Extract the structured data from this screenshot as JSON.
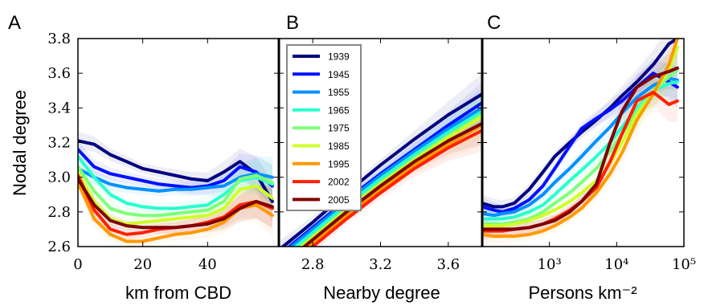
{
  "figure": {
    "ylabel": "Nodal degree",
    "ylim": [
      2.6,
      3.8
    ],
    "y_ticks": [
      "2.6",
      "2.8",
      "3.0",
      "3.2",
      "3.4",
      "3.6",
      "3.8"
    ],
    "y_tick_values": [
      2.6,
      2.8,
      3.0,
      3.2,
      3.4,
      3.6,
      3.8
    ]
  },
  "legend": {
    "placement": "upper-left of panel B",
    "entries": [
      {
        "name": "1939",
        "color": "#00007f"
      },
      {
        "name": "1945",
        "color": "#0010ff"
      },
      {
        "name": "1955",
        "color": "#0090ff"
      },
      {
        "name": "1965",
        "color": "#29ffce"
      },
      {
        "name": "1975",
        "color": "#7dff7a"
      },
      {
        "name": "1985",
        "color": "#ceff29"
      },
      {
        "name": "1995",
        "color": "#ff9900"
      },
      {
        "name": "2002",
        "color": "#ff2000"
      },
      {
        "name": "2005",
        "color": "#7f0000"
      }
    ]
  },
  "chart_data": [
    {
      "panel": "A",
      "type": "line",
      "xlabel": "km from CBD",
      "ylabel": "Nodal degree",
      "xlim": [
        0,
        62
      ],
      "ylim": [
        2.6,
        3.8
      ],
      "x_ticks": [
        "0",
        "20",
        "40"
      ],
      "x_tick_values": [
        0,
        20,
        40
      ],
      "bands": true,
      "series": [
        {
          "name": "1939",
          "x": [
            0,
            5,
            10,
            15,
            20,
            25,
            30,
            35,
            40,
            45,
            50,
            55,
            60
          ],
          "y": [
            3.21,
            3.19,
            3.13,
            3.09,
            3.05,
            3.03,
            3.01,
            2.99,
            2.98,
            3.03,
            3.09,
            3.02,
            2.86
          ]
        },
        {
          "name": "1945",
          "x": [
            0,
            5,
            10,
            15,
            20,
            25,
            30,
            35,
            40,
            45,
            50,
            55,
            60
          ],
          "y": [
            3.16,
            3.06,
            3.02,
            3.0,
            2.98,
            2.96,
            2.95,
            2.94,
            2.95,
            2.98,
            3.06,
            3.03,
            2.95
          ]
        },
        {
          "name": "1955",
          "x": [
            0,
            5,
            10,
            15,
            20,
            25,
            30,
            35,
            40,
            45,
            50,
            55,
            60
          ],
          "y": [
            3.05,
            3.0,
            2.96,
            2.94,
            2.93,
            2.92,
            2.93,
            2.93,
            2.94,
            2.95,
            3.0,
            3.02,
            3.0
          ]
        },
        {
          "name": "1965",
          "x": [
            0,
            5,
            10,
            15,
            20,
            25,
            30,
            35,
            40,
            45,
            50,
            55,
            60
          ],
          "y": [
            3.12,
            3.0,
            2.9,
            2.85,
            2.83,
            2.82,
            2.82,
            2.83,
            2.84,
            2.9,
            2.98,
            3.0,
            2.96
          ]
        },
        {
          "name": "1975",
          "x": [
            0,
            5,
            10,
            15,
            20,
            25,
            30,
            35,
            40,
            45,
            50,
            55,
            60
          ],
          "y": [
            3.06,
            2.92,
            2.82,
            2.79,
            2.78,
            2.78,
            2.79,
            2.8,
            2.81,
            2.86,
            2.99,
            3.01,
            2.97
          ]
        },
        {
          "name": "1985",
          "x": [
            0,
            5,
            10,
            15,
            20,
            25,
            30,
            35,
            40,
            45,
            50,
            55,
            60
          ],
          "y": [
            3.03,
            2.86,
            2.76,
            2.73,
            2.74,
            2.75,
            2.76,
            2.77,
            2.78,
            2.82,
            2.93,
            2.95,
            2.88
          ]
        },
        {
          "name": "1995",
          "x": [
            0,
            5,
            10,
            15,
            20,
            25,
            30,
            35,
            40,
            45,
            50,
            55,
            60
          ],
          "y": [
            2.97,
            2.76,
            2.67,
            2.63,
            2.63,
            2.65,
            2.67,
            2.68,
            2.7,
            2.74,
            2.82,
            2.84,
            2.78
          ]
        },
        {
          "name": "2002",
          "x": [
            0,
            5,
            10,
            15,
            20,
            25,
            30,
            35,
            40,
            45,
            50,
            55,
            60
          ],
          "y": [
            3.01,
            2.81,
            2.7,
            2.67,
            2.68,
            2.7,
            2.71,
            2.72,
            2.74,
            2.77,
            2.84,
            2.86,
            2.82
          ]
        },
        {
          "name": "2005",
          "x": [
            0,
            5,
            10,
            15,
            20,
            25,
            30,
            35,
            40,
            45,
            50,
            55,
            60
          ],
          "y": [
            2.99,
            2.84,
            2.75,
            2.72,
            2.71,
            2.71,
            2.71,
            2.72,
            2.73,
            2.76,
            2.82,
            2.86,
            2.83
          ]
        }
      ]
    },
    {
      "panel": "B",
      "type": "line",
      "xlabel": "Nearby degree",
      "ylabel": "",
      "xlim": [
        2.6,
        3.8
      ],
      "ylim": [
        2.6,
        3.8
      ],
      "x_ticks": [
        "2.8",
        "3.2",
        "3.6"
      ],
      "x_tick_values": [
        2.8,
        3.2,
        3.6
      ],
      "bands": true,
      "series": [
        {
          "name": "1939",
          "x": [
            2.6,
            2.8,
            3.0,
            3.2,
            3.4,
            3.6,
            3.8
          ],
          "y": [
            2.58,
            2.74,
            2.91,
            3.07,
            3.22,
            3.36,
            3.48
          ]
        },
        {
          "name": "1945",
          "x": [
            2.6,
            2.8,
            3.0,
            3.2,
            3.4,
            3.6,
            3.8
          ],
          "y": [
            2.55,
            2.71,
            2.87,
            3.02,
            3.16,
            3.3,
            3.43
          ]
        },
        {
          "name": "1955",
          "x": [
            2.6,
            2.8,
            3.0,
            3.2,
            3.4,
            3.6,
            3.8
          ],
          "y": [
            2.54,
            2.7,
            2.86,
            3.01,
            3.15,
            3.28,
            3.4
          ]
        },
        {
          "name": "1965",
          "x": [
            2.6,
            2.8,
            3.0,
            3.2,
            3.4,
            3.6,
            3.8
          ],
          "y": [
            2.52,
            2.68,
            2.84,
            2.99,
            3.13,
            3.26,
            3.38
          ]
        },
        {
          "name": "1975",
          "x": [
            2.6,
            2.8,
            3.0,
            3.2,
            3.4,
            3.6,
            3.8
          ],
          "y": [
            2.5,
            2.66,
            2.82,
            2.97,
            3.11,
            3.24,
            3.36
          ]
        },
        {
          "name": "1985",
          "x": [
            2.6,
            2.8,
            3.0,
            3.2,
            3.4,
            3.6,
            3.8
          ],
          "y": [
            2.49,
            2.65,
            2.81,
            2.96,
            3.1,
            3.23,
            3.35
          ]
        },
        {
          "name": "1995",
          "x": [
            2.6,
            2.8,
            3.0,
            3.2,
            3.4,
            3.6,
            3.8
          ],
          "y": [
            2.46,
            2.62,
            2.78,
            2.93,
            3.07,
            3.19,
            3.3
          ]
        },
        {
          "name": "2002",
          "x": [
            2.6,
            2.8,
            3.0,
            3.2,
            3.4,
            3.6,
            3.8
          ],
          "y": [
            2.44,
            2.6,
            2.76,
            2.91,
            3.05,
            3.17,
            3.27
          ]
        },
        {
          "name": "2005",
          "x": [
            2.6,
            2.8,
            3.0,
            3.2,
            3.4,
            3.6,
            3.8
          ],
          "y": [
            2.48,
            2.64,
            2.8,
            2.95,
            3.09,
            3.21,
            3.31
          ]
        }
      ]
    },
    {
      "panel": "C",
      "type": "line",
      "xlabel": "Persons km⁻²",
      "ylabel": "",
      "x_scale": "log",
      "xlim": [
        100,
        100000
      ],
      "ylim": [
        2.6,
        3.8
      ],
      "x_ticks": [
        "10³",
        "10⁴",
        "10⁵"
      ],
      "x_tick_values": [
        1000,
        10000,
        100000
      ],
      "bands": true,
      "series": [
        {
          "name": "1939",
          "x": [
            100,
            150,
            200,
            300,
            500,
            800,
            1200,
            2000,
            3000,
            5000,
            8000,
            12000,
            20000,
            35000,
            60000,
            80000
          ],
          "y": [
            2.85,
            2.83,
            2.83,
            2.85,
            2.93,
            3.03,
            3.12,
            3.2,
            3.26,
            3.33,
            3.4,
            3.47,
            3.55,
            3.65,
            3.77,
            3.8
          ]
        },
        {
          "name": "1945",
          "x": [
            100,
            150,
            200,
            300,
            500,
            800,
            1200,
            2000,
            3000,
            5000,
            8000,
            12000,
            20000,
            35000,
            60000,
            80000
          ],
          "y": [
            2.83,
            2.81,
            2.8,
            2.82,
            2.87,
            2.95,
            3.05,
            3.18,
            3.28,
            3.34,
            3.39,
            3.44,
            3.52,
            3.6,
            3.55,
            3.52
          ]
        },
        {
          "name": "1955",
          "x": [
            100,
            150,
            200,
            300,
            500,
            800,
            1200,
            2000,
            3000,
            5000,
            8000,
            12000,
            20000,
            35000,
            60000,
            80000
          ],
          "y": [
            2.79,
            2.78,
            2.79,
            2.8,
            2.84,
            2.9,
            2.97,
            3.05,
            3.12,
            3.21,
            3.29,
            3.37,
            3.46,
            3.53,
            3.57,
            3.56
          ]
        },
        {
          "name": "1965",
          "x": [
            100,
            150,
            200,
            300,
            500,
            800,
            1200,
            2000,
            3000,
            5000,
            8000,
            12000,
            20000,
            35000,
            60000,
            80000
          ],
          "y": [
            2.76,
            2.76,
            2.76,
            2.77,
            2.8,
            2.84,
            2.9,
            2.98,
            3.04,
            3.12,
            3.2,
            3.29,
            3.4,
            3.5,
            3.54,
            3.55
          ]
        },
        {
          "name": "1975",
          "x": [
            100,
            150,
            200,
            300,
            500,
            800,
            1200,
            2000,
            3000,
            5000,
            8000,
            12000,
            20000,
            35000,
            60000,
            80000
          ],
          "y": [
            2.73,
            2.73,
            2.73,
            2.74,
            2.76,
            2.8,
            2.85,
            2.91,
            2.97,
            3.05,
            3.15,
            3.25,
            3.38,
            3.5,
            3.58,
            3.62
          ]
        },
        {
          "name": "1985",
          "x": [
            100,
            150,
            200,
            300,
            500,
            800,
            1200,
            2000,
            3000,
            5000,
            8000,
            12000,
            20000,
            35000,
            60000,
            80000
          ],
          "y": [
            2.72,
            2.72,
            2.72,
            2.73,
            2.75,
            2.78,
            2.81,
            2.86,
            2.91,
            2.98,
            3.08,
            3.2,
            3.36,
            3.48,
            3.62,
            3.75
          ]
        },
        {
          "name": "1995",
          "x": [
            100,
            150,
            200,
            300,
            500,
            800,
            1200,
            2000,
            3000,
            5000,
            8000,
            12000,
            20000,
            35000,
            60000,
            80000
          ],
          "y": [
            2.67,
            2.66,
            2.66,
            2.66,
            2.67,
            2.69,
            2.72,
            2.77,
            2.82,
            2.91,
            3.02,
            3.14,
            3.33,
            3.48,
            3.65,
            3.8
          ]
        },
        {
          "name": "2002",
          "x": [
            100,
            150,
            200,
            300,
            500,
            800,
            1200,
            2000,
            3000,
            5000,
            8000,
            12000,
            20000,
            35000,
            60000,
            80000
          ],
          "y": [
            2.69,
            2.69,
            2.69,
            2.7,
            2.71,
            2.73,
            2.76,
            2.81,
            2.86,
            2.94,
            3.09,
            3.25,
            3.44,
            3.49,
            3.42,
            3.44
          ]
        },
        {
          "name": "2005",
          "x": [
            100,
            150,
            200,
            300,
            500,
            800,
            1200,
            2000,
            3000,
            5000,
            8000,
            12000,
            20000,
            35000,
            60000,
            80000
          ],
          "y": [
            2.7,
            2.7,
            2.7,
            2.7,
            2.71,
            2.73,
            2.75,
            2.8,
            2.86,
            2.96,
            3.2,
            3.38,
            3.52,
            3.58,
            3.61,
            3.63
          ]
        }
      ]
    }
  ]
}
